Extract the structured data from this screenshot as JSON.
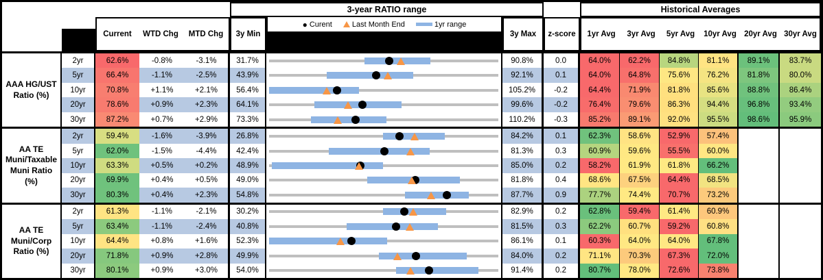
{
  "colors": {
    "row_alt": "#B7C9E2",
    "bar_1yr": "#8EB4E3",
    "track_gray": "#BFBFBF",
    "dot_black": "#000000",
    "triangle_orange": "#F79646",
    "header_black": "#000000"
  },
  "chart_data": {
    "type": "table",
    "title_range": "3-year RATIO range",
    "title_hist": "Historical Averages",
    "legend": {
      "current": "Curent",
      "last_month_end": "Last Month End",
      "range_1yr": "1yr range"
    },
    "headers": {
      "current": "Current",
      "wtd": "WTD Chg",
      "mtd": "MTD Chg",
      "min": "3y Min",
      "max": "3y Max",
      "z": "z-score",
      "avg": [
        "1yr Avg",
        "3yr Avg",
        "5yr Avg",
        "10yr Avg",
        "20yr Avg",
        "30yr Avg"
      ]
    },
    "groups": [
      {
        "label": "AAA HG/UST Ratio (%)",
        "rows": [
          {
            "tenor": "2yr",
            "current": "62.6%",
            "current_bg": "#F8696B",
            "wtd": "-0.8%",
            "mtd": "-3.1%",
            "min3y": "31.7%",
            "max3y": "90.8%",
            "zscore": "0.0",
            "range_chart": {
              "min": 31.7,
              "max": 90.8,
              "current": 62.6,
              "last_month_end": 65.7,
              "yr1_low": 56.3,
              "yr1_high": 73.2
            },
            "avgs": [
              "64.0%",
              "62.2%",
              "84.8%",
              "81.1%",
              "89.1%",
              "83.7%"
            ],
            "avg_bgs": [
              "#F8696B",
              "#F8696B",
              "#B8D67F",
              "#FFE483",
              "#6CC17C",
              "#C9DA81"
            ]
          },
          {
            "tenor": "5yr",
            "current": "66.4%",
            "current_bg": "#F8756E",
            "wtd": "-1.1%",
            "mtd": "-2.5%",
            "min3y": "43.9%",
            "max3y": "92.1%",
            "zscore": "0.1",
            "range_chart": {
              "min": 43.9,
              "max": 92.1,
              "current": 66.4,
              "last_month_end": 68.9,
              "yr1_low": 56.0,
              "yr1_high": 74.2
            },
            "avgs": [
              "64.0%",
              "64.8%",
              "75.6%",
              "76.2%",
              "81.8%",
              "80.0%"
            ],
            "avg_bgs": [
              "#F8696B",
              "#F8706C",
              "#FEE783",
              "#F5E482",
              "#7EC67E",
              "#C9DA81"
            ]
          },
          {
            "tenor": "10yr",
            "current": "70.8%",
            "current_bg": "#F87E70",
            "wtd": "+1.1%",
            "mtd": "+2.1%",
            "min3y": "56.4%",
            "max3y": "105.2%",
            "zscore": "-0.2",
            "range_chart": {
              "min": 56.4,
              "max": 105.2,
              "current": 70.8,
              "last_month_end": 68.7,
              "yr1_low": 56.4,
              "yr1_high": 75.5
            },
            "avgs": [
              "64.4%",
              "71.9%",
              "81.8%",
              "85.6%",
              "88.8%",
              "86.4%"
            ],
            "avg_bgs": [
              "#F8696B",
              "#F98970",
              "#FFE07F",
              "#E8E382",
              "#70C27D",
              "#ABD27F"
            ]
          },
          {
            "tenor": "20yr",
            "current": "78.6%",
            "current_bg": "#F87B6F",
            "wtd": "+0.9%",
            "mtd": "+2.3%",
            "min3y": "64.1%",
            "max3y": "99.6%",
            "zscore": "-0.2",
            "range_chart": {
              "min": 64.1,
              "max": 99.6,
              "current": 78.6,
              "last_month_end": 76.3,
              "yr1_low": 71.1,
              "yr1_high": 84.6
            },
            "avgs": [
              "76.4%",
              "79.6%",
              "86.3%",
              "94.4%",
              "96.8%",
              "93.4%"
            ],
            "avg_bgs": [
              "#F86C6B",
              "#F98E71",
              "#FFDF7E",
              "#D5DE81",
              "#68BF7C",
              "#93CC7F"
            ]
          },
          {
            "tenor": "30yr",
            "current": "87.2%",
            "current_bg": "#F98A73",
            "wtd": "+0.7%",
            "mtd": "+2.9%",
            "min3y": "73.3%",
            "max3y": "110.2%",
            "zscore": "-0.3",
            "range_chart": {
              "min": 73.3,
              "max": 110.2,
              "current": 87.2,
              "last_month_end": 84.3,
              "yr1_low": 80.0,
              "yr1_high": 92.2
            },
            "avgs": [
              "85.2%",
              "89.1%",
              "92.0%",
              "95.5%",
              "98.6%",
              "95.9%"
            ],
            "avg_bgs": [
              "#F87A6E",
              "#FA9B74",
              "#FFE181",
              "#CCDC81",
              "#63BE7B",
              "#8BCA7E"
            ]
          }
        ]
      },
      {
        "label": "AA TE Muni/Taxable Muni Ratio (%)",
        "rows": [
          {
            "tenor": "2yr",
            "current": "59.4%",
            "current_bg": "#D8DE82",
            "wtd": "-1.6%",
            "mtd": "-3.9%",
            "min3y": "26.8%",
            "max3y": "84.2%",
            "zscore": "0.1",
            "range_chart": {
              "min": 26.8,
              "max": 84.2,
              "current": 59.4,
              "last_month_end": 63.3,
              "yr1_low": 55.3,
              "yr1_high": 70.8
            },
            "avgs": [
              "62.3%",
              "58.6%",
              "52.9%",
              "57.4%",
              "",
              ""
            ],
            "avg_bgs": [
              "#70C27D",
              "#FFE383",
              "#F8696B",
              "#FCC17B",
              "#FFFFFF",
              "#FFFFFF"
            ]
          },
          {
            "tenor": "5yr",
            "current": "62.0%",
            "current_bg": "#6FC27D",
            "wtd": "-1.5%",
            "mtd": "-4.4%",
            "min3y": "42.4%",
            "max3y": "81.3%",
            "zscore": "0.3",
            "range_chart": {
              "min": 42.4,
              "max": 81.3,
              "current": 62.0,
              "last_month_end": 66.4,
              "yr1_low": 52.5,
              "yr1_high": 69.6
            },
            "avgs": [
              "60.9%",
              "59.6%",
              "55.5%",
              "60.0%",
              "",
              ""
            ],
            "avg_bgs": [
              "#B5D57F",
              "#FFE883",
              "#F9706C",
              "#FFE783",
              "#FFFFFF",
              "#FFFFFF"
            ]
          },
          {
            "tenor": "10yr",
            "current": "63.3%",
            "current_bg": "#CFDC81",
            "wtd": "+0.5%",
            "mtd": "+0.2%",
            "min3y": "48.9%",
            "max3y": "85.0%",
            "zscore": "0.2",
            "range_chart": {
              "min": 48.9,
              "max": 85.0,
              "current": 63.3,
              "last_month_end": 63.1,
              "yr1_low": 49.3,
              "yr1_high": 66.8
            },
            "avgs": [
              "58.2%",
              "61.9%",
              "61.8%",
              "66.2%",
              "",
              ""
            ],
            "avg_bgs": [
              "#F8696B",
              "#FFE983",
              "#FEE983",
              "#63BE7B",
              "#FFFFFF",
              "#FFFFFF"
            ]
          },
          {
            "tenor": "20yr",
            "current": "69.9%",
            "current_bg": "#6FC27D",
            "wtd": "+0.4%",
            "mtd": "+0.5%",
            "min3y": "49.0%",
            "max3y": "81.8%",
            "zscore": "0.4",
            "range_chart": {
              "min": 49.0,
              "max": 81.8,
              "current": 69.9,
              "last_month_end": 69.4,
              "yr1_low": 63.0,
              "yr1_high": 76.3
            },
            "avgs": [
              "68.6%",
              "67.5%",
              "64.4%",
              "68.5%",
              "",
              ""
            ],
            "avg_bgs": [
              "#FFE583",
              "#FDD17E",
              "#F8696B",
              "#F2E381",
              "#FFFFFF",
              "#FFFFFF"
            ]
          },
          {
            "tenor": "30yr",
            "current": "80.3%",
            "current_bg": "#70C27D",
            "wtd": "+0.4%",
            "mtd": "+2.3%",
            "min3y": "54.8%",
            "max3y": "87.7%",
            "zscore": "0.9",
            "range_chart": {
              "min": 54.8,
              "max": 87.7,
              "current": 80.3,
              "last_month_end": 78.0,
              "yr1_low": 74.3,
              "yr1_high": 83.5
            },
            "avgs": [
              "77.7%",
              "74.4%",
              "70.7%",
              "73.2%",
              "",
              ""
            ],
            "avg_bgs": [
              "#ACD27F",
              "#FFE983",
              "#F8696B",
              "#FCCA7C",
              "#FFFFFF",
              "#FFFFFF"
            ]
          }
        ]
      },
      {
        "label": "AA TE Muni/Corp Ratio (%)",
        "rows": [
          {
            "tenor": "2yr",
            "current": "61.3%",
            "current_bg": "#FFE483",
            "wtd": "-1.1%",
            "mtd": "-2.1%",
            "min3y": "30.2%",
            "max3y": "82.9%",
            "zscore": "0.2",
            "range_chart": {
              "min": 30.2,
              "max": 82.9,
              "current": 61.3,
              "last_month_end": 63.4,
              "yr1_low": 56.4,
              "yr1_high": 70.9
            },
            "avgs": [
              "62.8%",
              "59.4%",
              "61.4%",
              "60.9%",
              "",
              ""
            ],
            "avg_bgs": [
              "#6AC07C",
              "#F8696B",
              "#FFE883",
              "#FDC77C",
              "#FFFFFF",
              "#FFFFFF"
            ]
          },
          {
            "tenor": "5yr",
            "current": "63.4%",
            "current_bg": "#8CCA7E",
            "wtd": "-1.1%",
            "mtd": "-2.4%",
            "min3y": "40.8%",
            "max3y": "81.5%",
            "zscore": "0.3",
            "range_chart": {
              "min": 40.8,
              "max": 81.5,
              "current": 63.4,
              "last_month_end": 65.8,
              "yr1_low": 54.6,
              "yr1_high": 70.8
            },
            "avgs": [
              "62.2%",
              "60.7%",
              "59.2%",
              "60.8%",
              "",
              ""
            ],
            "avg_bgs": [
              "#8CCA7E",
              "#FFE07F",
              "#F8696B",
              "#FEE083",
              "#FFFFFF",
              "#FFFFFF"
            ]
          },
          {
            "tenor": "10yr",
            "current": "64.4%",
            "current_bg": "#FFE483",
            "wtd": "+0.8%",
            "mtd": "+1.6%",
            "min3y": "52.3%",
            "max3y": "86.1%",
            "zscore": "0.1",
            "range_chart": {
              "min": 52.3,
              "max": 86.1,
              "current": 64.4,
              "last_month_end": 62.8,
              "yr1_low": 52.3,
              "yr1_high": 69.7
            },
            "avgs": [
              "60.3%",
              "64.0%",
              "64.0%",
              "67.8%",
              "",
              ""
            ],
            "avg_bgs": [
              "#F8696B",
              "#FFE883",
              "#FFE883",
              "#63BE7B",
              "#FFFFFF",
              "#FFFFFF"
            ]
          },
          {
            "tenor": "20yr",
            "current": "71.8%",
            "current_bg": "#86C87E",
            "wtd": "+0.9%",
            "mtd": "+2.8%",
            "min3y": "49.9%",
            "max3y": "84.0%",
            "zscore": "0.2",
            "range_chart": {
              "min": 49.9,
              "max": 84.0,
              "current": 71.8,
              "last_month_end": 69.0,
              "yr1_low": 66.2,
              "yr1_high": 79.3
            },
            "avgs": [
              "71.1%",
              "70.3%",
              "67.3%",
              "72.0%",
              "",
              ""
            ],
            "avg_bgs": [
              "#FFE583",
              "#FCCA7C",
              "#F8696B",
              "#63BE7B",
              "#FFFFFF",
              "#FFFFFF"
            ]
          },
          {
            "tenor": "30yr",
            "current": "80.1%",
            "current_bg": "#8CCA7E",
            "wtd": "+0.9%",
            "mtd": "+3.0%",
            "min3y": "54.0%",
            "max3y": "91.4%",
            "zscore": "0.2",
            "range_chart": {
              "min": 54.0,
              "max": 91.4,
              "current": 80.1,
              "last_month_end": 77.1,
              "yr1_low": 74.7,
              "yr1_high": 88.2
            },
            "avgs": [
              "80.7%",
              "78.0%",
              "72.6%",
              "73.8%",
              "",
              ""
            ],
            "avg_bgs": [
              "#63BE7B",
              "#FFE883",
              "#F8696B",
              "#F8816F",
              "#FFFFFF",
              "#FFFFFF"
            ]
          }
        ]
      }
    ]
  }
}
